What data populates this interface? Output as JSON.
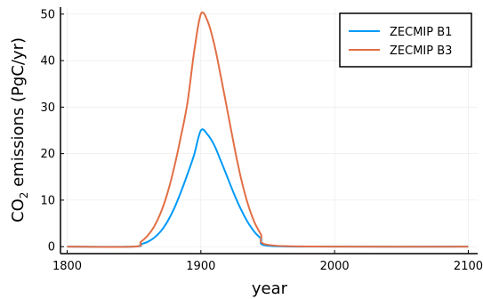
{
  "chart_data": {
    "type": "line",
    "xlabel": "year",
    "ylabel": {
      "prefix": "CO",
      "subscript": "2",
      "suffix": " emissions (PgC/yr)"
    },
    "xlim": [
      1795,
      2107
    ],
    "ylim": [
      -1.5,
      51.5
    ],
    "xticks": [
      1800,
      1900,
      2000,
      2100
    ],
    "yticks": [
      0,
      10,
      20,
      30,
      40,
      50
    ],
    "grid": true,
    "legend_position": "top-right",
    "series": [
      {
        "name": "ZECMIP B1",
        "color": "#009af9",
        "x": [
          1800,
          1850,
          1855,
          1860,
          1865,
          1870,
          1875,
          1880,
          1885,
          1890,
          1895,
          1900,
          1905,
          1910,
          1915,
          1920,
          1925,
          1930,
          1935,
          1940,
          1945,
          1950,
          2000,
          2100
        ],
        "y": [
          0,
          0,
          0.5,
          1.0,
          1.9,
          3.3,
          5.4,
          8.2,
          11.7,
          15.6,
          19.8,
          25.0,
          24.1,
          21.8,
          18.4,
          14.8,
          11.2,
          8.0,
          5.3,
          3.2,
          1.7,
          0.2,
          0,
          0
        ]
      },
      {
        "name": "ZECMIP B3",
        "color": "#e26f46",
        "x": [
          1800,
          1850,
          1855,
          1860,
          1865,
          1870,
          1875,
          1880,
          1885,
          1890,
          1895,
          1900,
          1905,
          1910,
          1915,
          1920,
          1925,
          1930,
          1935,
          1940,
          1945,
          1950,
          2000,
          2100
        ],
        "y": [
          0,
          0,
          1.0,
          2.3,
          4.3,
          7.3,
          11.5,
          17.0,
          23.6,
          31.0,
          42.0,
          50.0,
          48.5,
          43.5,
          36.5,
          29.0,
          21.5,
          14.7,
          9.3,
          5.3,
          2.6,
          0.4,
          0,
          0
        ]
      }
    ]
  }
}
